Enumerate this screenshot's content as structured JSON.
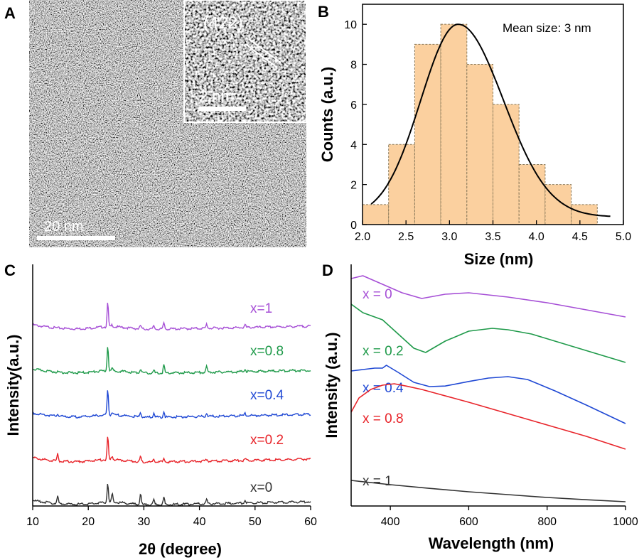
{
  "panels": {
    "a": {
      "label": "A",
      "scale_bar": "20 nm",
      "inset_plane": "(422)",
      "inset_scale_bar": "2 nm"
    },
    "b": {
      "label": "B"
    },
    "c": {
      "label": "C"
    },
    "d": {
      "label": "D"
    }
  },
  "colors": {
    "purple": "#a64fd6",
    "green": "#1f9a4a",
    "blue": "#1f48d4",
    "red": "#e8242a",
    "black": "#333333",
    "bar_fill": "#fbd09f"
  },
  "chart_data": [
    {
      "id": "B",
      "type": "bar",
      "xlabel": "Size (nm)",
      "ylabel": "Counts (a.u.)",
      "annotation": "Mean size: 3 nm",
      "xlim": [
        2.0,
        5.0
      ],
      "ylim": [
        0,
        11
      ],
      "xticks": [
        "2.0",
        "2.5",
        "3.0",
        "3.5",
        "4.0",
        "4.5",
        "5.0"
      ],
      "yticks": [
        "0",
        "2",
        "4",
        "6",
        "8",
        "10"
      ],
      "bin_edges": [
        2.0,
        2.3,
        2.6,
        2.9,
        3.2,
        3.5,
        3.8,
        4.1,
        4.4,
        4.7
      ],
      "values": [
        1,
        4,
        9,
        10,
        8,
        6,
        3,
        2,
        1
      ],
      "fit": {
        "type": "gaussian-like",
        "peak_x": 3.1,
        "peak_y": 10,
        "x_start": 2.1,
        "x_end": 4.85
      }
    },
    {
      "id": "C",
      "type": "line",
      "xlabel": "2θ (degree)",
      "ylabel": "Intensity(a.u.)",
      "xlim": [
        10,
        60
      ],
      "xticks": [
        "10",
        "20",
        "30",
        "40",
        "50",
        "60"
      ],
      "peaks_2theta": [
        14.5,
        23.5,
        24.3,
        29.4,
        31.8,
        33.6,
        41.3,
        48.2
      ],
      "series": [
        {
          "name": "x=1",
          "color": "#a64fd6",
          "offset": 4,
          "peak_heights": [
            0,
            34,
            3,
            5,
            5,
            9,
            6,
            4
          ]
        },
        {
          "name": "x=0.8",
          "color": "#1f9a4a",
          "offset": 3,
          "peak_heights": [
            0,
            36,
            3,
            6,
            4,
            12,
            8,
            4
          ]
        },
        {
          "name": "x=0.4",
          "color": "#1f48d4",
          "offset": 2,
          "peak_heights": [
            3,
            36,
            3,
            7,
            6,
            8,
            5,
            3
          ]
        },
        {
          "name": "x=0.2",
          "color": "#e8242a",
          "offset": 1,
          "peak_heights": [
            10,
            33,
            5,
            8,
            4,
            5,
            3,
            2
          ]
        },
        {
          "name": "x=0",
          "color": "#333333",
          "offset": 0,
          "peak_heights": [
            10,
            28,
            12,
            16,
            7,
            10,
            6,
            4
          ]
        }
      ]
    },
    {
      "id": "D",
      "type": "line",
      "xlabel": "Wavelength (nm)",
      "ylabel": "Intensity (a.u.)",
      "xlim": [
        300,
        1000
      ],
      "xticks": [
        "400",
        "600",
        "800",
        "1000"
      ],
      "series": [
        {
          "name": "x = 0",
          "color": "#a64fd6",
          "x": [
            300,
            330,
            380,
            430,
            480,
            540,
            600,
            700,
            800,
            900,
            1000
          ],
          "y": [
            6.4,
            6.5,
            6.2,
            5.9,
            5.7,
            5.85,
            5.9,
            5.75,
            5.55,
            5.3,
            5.05
          ]
        },
        {
          "name": "x = 0.2",
          "color": "#1f9a4a",
          "x": [
            300,
            330,
            380,
            420,
            460,
            490,
            540,
            600,
            660,
            700,
            760,
            820,
            880,
            1000
          ],
          "y": [
            5.5,
            5.2,
            4.95,
            4.45,
            3.95,
            3.8,
            4.2,
            4.55,
            4.65,
            4.6,
            4.45,
            4.2,
            3.95,
            3.45
          ]
        },
        {
          "name": "x = 0.4",
          "color": "#1f48d4",
          "x": [
            300,
            330,
            360,
            380,
            390,
            420,
            460,
            500,
            540,
            600,
            650,
            700,
            750,
            820,
            900,
            1000
          ],
          "y": [
            3.15,
            3.2,
            3.25,
            3.25,
            3.35,
            3.1,
            2.75,
            2.6,
            2.62,
            2.78,
            2.9,
            2.95,
            2.85,
            2.45,
            1.95,
            1.3
          ]
        },
        {
          "name": "x = 0.8",
          "color": "#e8242a",
          "x": [
            300,
            320,
            350,
            380,
            410,
            440,
            480,
            520,
            560,
            600,
            700,
            800,
            900,
            1000
          ],
          "y": [
            1.7,
            2.2,
            2.5,
            2.65,
            2.7,
            2.62,
            2.5,
            2.35,
            2.2,
            2.05,
            1.65,
            1.25,
            0.85,
            0.4
          ]
        },
        {
          "name": "x = 1",
          "color": "#333333",
          "x": [
            300,
            400,
            500,
            600,
            700,
            800,
            900,
            1000
          ],
          "y": [
            -0.7,
            -0.85,
            -0.98,
            -1.1,
            -1.2,
            -1.3,
            -1.38,
            -1.45
          ]
        }
      ]
    }
  ]
}
